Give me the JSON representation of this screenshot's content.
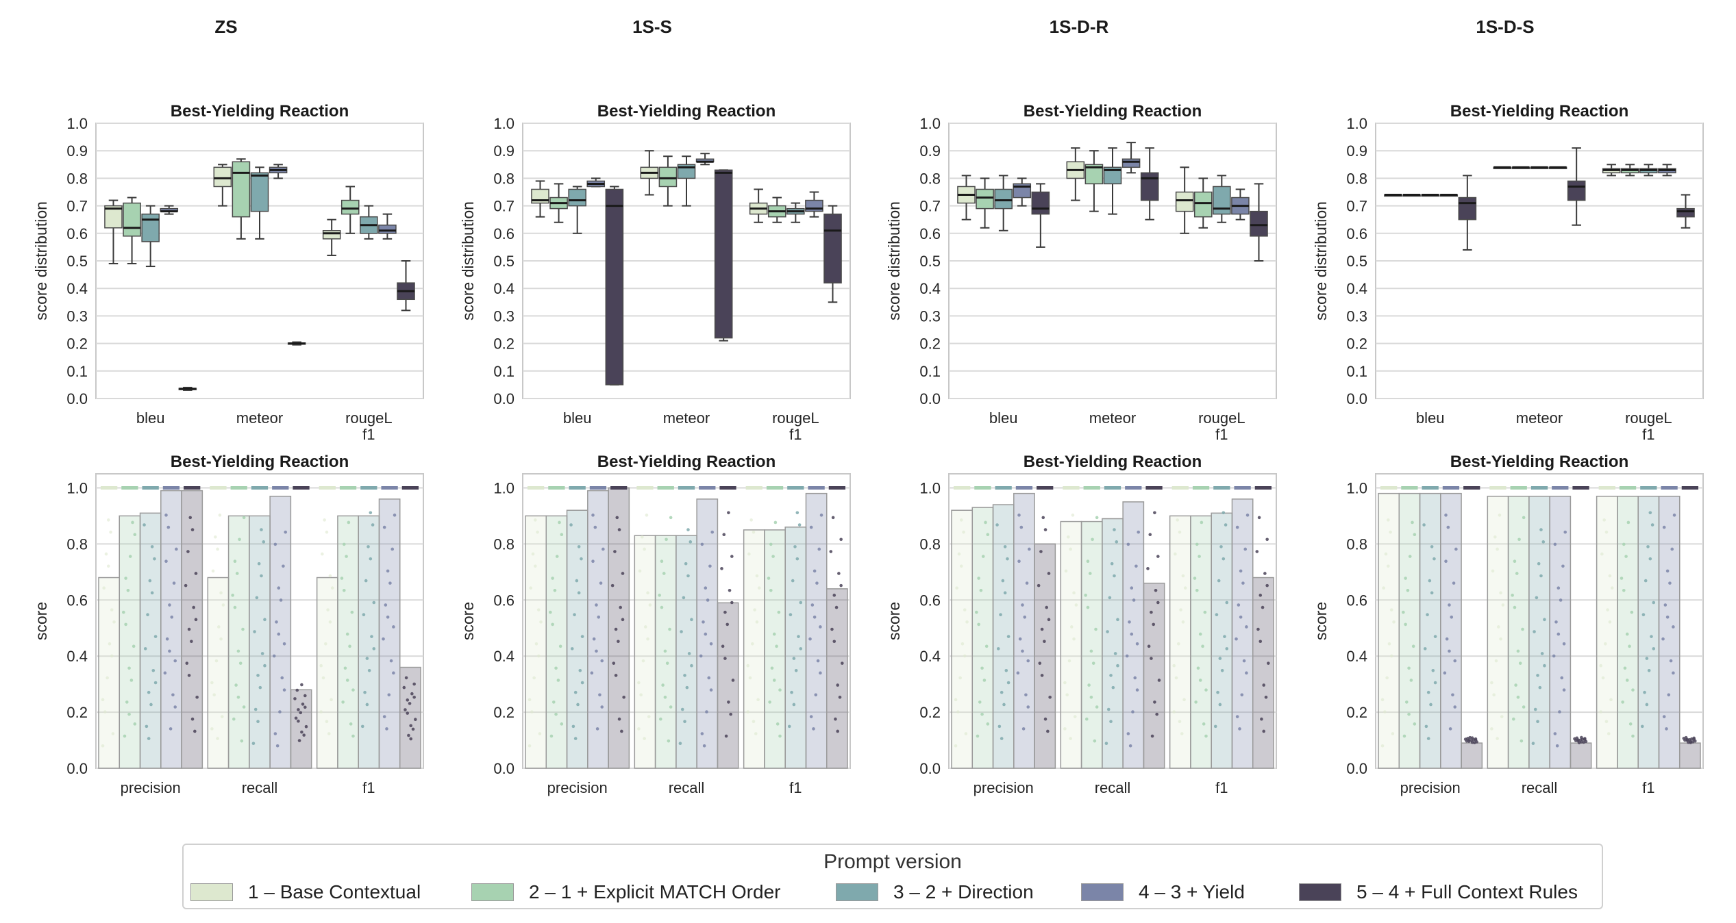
{
  "columns": [
    "ZS",
    "1S-S",
    "1S-D-R",
    "1S-D-S"
  ],
  "legend": {
    "title": "Prompt version",
    "items": [
      {
        "label": "1 – Base Contextual",
        "color": "#dde8cf"
      },
      {
        "label": "2 – 1 + Explicit MATCH Order",
        "color": "#a7d2b1"
      },
      {
        "label": "3 – 2 + Direction",
        "color": "#7fa9ad"
      },
      {
        "label": "4 – 3 + Yield",
        "color": "#7b85a8"
      },
      {
        "label": "5 – 4 + Full Context Rules",
        "color": "#4a4358"
      }
    ]
  },
  "chart_data": [
    {
      "type": "box",
      "column": "ZS",
      "title": "Best-Yielding Reaction",
      "ylabel": "score distribution",
      "ylim": [
        0,
        1
      ],
      "yticks": [
        "0.0",
        "0.1",
        "0.2",
        "0.3",
        "0.4",
        "0.5",
        "0.6",
        "0.7",
        "0.8",
        "0.9",
        "1.0"
      ],
      "categories": [
        "bleu",
        "meteor",
        "rougeL\nf1"
      ],
      "series": [
        {
          "name": "1",
          "boxes": [
            [
              0.49,
              0.62,
              0.69,
              0.7,
              0.72
            ],
            [
              0.7,
              0.77,
              0.8,
              0.84,
              0.85
            ],
            [
              0.52,
              0.58,
              0.6,
              0.61,
              0.65
            ]
          ]
        },
        {
          "name": "2",
          "boxes": [
            [
              0.49,
              0.59,
              0.62,
              0.71,
              0.73
            ],
            [
              0.58,
              0.66,
              0.82,
              0.86,
              0.87
            ],
            [
              0.6,
              0.67,
              0.69,
              0.72,
              0.77
            ]
          ]
        },
        {
          "name": "3",
          "boxes": [
            [
              0.48,
              0.57,
              0.65,
              0.67,
              0.7
            ],
            [
              0.58,
              0.68,
              0.81,
              0.82,
              0.84
            ],
            [
              0.58,
              0.6,
              0.63,
              0.66,
              0.7
            ]
          ]
        },
        {
          "name": "4",
          "boxes": [
            [
              0.67,
              0.68,
              0.68,
              0.69,
              0.7
            ],
            [
              0.8,
              0.82,
              0.83,
              0.84,
              0.85
            ],
            [
              0.58,
              0.6,
              0.61,
              0.63,
              0.67
            ]
          ]
        },
        {
          "name": "5",
          "boxes": [
            [
              0.03,
              0.034,
              0.035,
              0.037,
              0.04
            ],
            [
              0.195,
              0.198,
              0.2,
              0.202,
              0.205
            ],
            [
              0.32,
              0.36,
              0.39,
              0.42,
              0.5
            ]
          ]
        }
      ]
    },
    {
      "type": "box",
      "column": "1S-S",
      "title": "Best-Yielding Reaction",
      "ylabel": "score distribution",
      "ylim": [
        0,
        1
      ],
      "yticks": [
        "0.0",
        "0.1",
        "0.2",
        "0.3",
        "0.4",
        "0.5",
        "0.6",
        "0.7",
        "0.8",
        "0.9",
        "1.0"
      ],
      "categories": [
        "bleu",
        "meteor",
        "rougeL\nf1"
      ],
      "series": [
        {
          "name": "1",
          "boxes": [
            [
              0.66,
              0.71,
              0.72,
              0.76,
              0.79
            ],
            [
              0.74,
              0.8,
              0.82,
              0.84,
              0.9
            ],
            [
              0.64,
              0.67,
              0.69,
              0.71,
              0.76
            ]
          ]
        },
        {
          "name": "2",
          "boxes": [
            [
              0.64,
              0.69,
              0.71,
              0.73,
              0.78
            ],
            [
              0.7,
              0.77,
              0.8,
              0.84,
              0.88
            ],
            [
              0.64,
              0.66,
              0.68,
              0.7,
              0.73
            ]
          ]
        },
        {
          "name": "3",
          "boxes": [
            [
              0.6,
              0.7,
              0.72,
              0.76,
              0.77
            ],
            [
              0.7,
              0.8,
              0.84,
              0.85,
              0.88
            ],
            [
              0.64,
              0.67,
              0.68,
              0.69,
              0.71
            ]
          ]
        },
        {
          "name": "4",
          "boxes": [
            [
              0.77,
              0.77,
              0.78,
              0.79,
              0.8
            ],
            [
              0.85,
              0.86,
              0.86,
              0.87,
              0.89
            ],
            [
              0.66,
              0.68,
              0.69,
              0.72,
              0.75
            ]
          ]
        },
        {
          "name": "5",
          "boxes": [
            [
              0.05,
              0.05,
              0.7,
              0.76,
              0.77
            ],
            [
              0.21,
              0.22,
              0.82,
              0.83,
              0.83
            ],
            [
              0.35,
              0.42,
              0.61,
              0.67,
              0.7
            ]
          ]
        }
      ]
    },
    {
      "type": "box",
      "column": "1S-D-R",
      "title": "Best-Yielding Reaction",
      "ylabel": "score distribution",
      "ylim": [
        0,
        1
      ],
      "yticks": [
        "0.0",
        "0.1",
        "0.2",
        "0.3",
        "0.4",
        "0.5",
        "0.6",
        "0.7",
        "0.8",
        "0.9",
        "1.0"
      ],
      "categories": [
        "bleu",
        "meteor",
        "rougeL\nf1"
      ],
      "series": [
        {
          "name": "1",
          "boxes": [
            [
              0.65,
              0.71,
              0.74,
              0.77,
              0.81
            ],
            [
              0.72,
              0.8,
              0.83,
              0.86,
              0.91
            ],
            [
              0.6,
              0.68,
              0.72,
              0.75,
              0.84
            ]
          ]
        },
        {
          "name": "2",
          "boxes": [
            [
              0.62,
              0.69,
              0.73,
              0.76,
              0.8
            ],
            [
              0.68,
              0.78,
              0.84,
              0.85,
              0.9
            ],
            [
              0.62,
              0.66,
              0.71,
              0.75,
              0.8
            ]
          ]
        },
        {
          "name": "3",
          "boxes": [
            [
              0.61,
              0.69,
              0.72,
              0.76,
              0.81
            ],
            [
              0.67,
              0.78,
              0.83,
              0.84,
              0.91
            ],
            [
              0.64,
              0.67,
              0.69,
              0.77,
              0.81
            ]
          ]
        },
        {
          "name": "4",
          "boxes": [
            [
              0.7,
              0.73,
              0.77,
              0.78,
              0.8
            ],
            [
              0.82,
              0.84,
              0.86,
              0.87,
              0.93
            ],
            [
              0.65,
              0.67,
              0.7,
              0.73,
              0.76
            ]
          ]
        },
        {
          "name": "5",
          "boxes": [
            [
              0.55,
              0.67,
              0.69,
              0.75,
              0.78
            ],
            [
              0.65,
              0.72,
              0.8,
              0.82,
              0.91
            ],
            [
              0.5,
              0.59,
              0.63,
              0.68,
              0.78
            ]
          ]
        }
      ]
    },
    {
      "type": "box",
      "column": "1S-D-S",
      "title": "Best-Yielding Reaction",
      "ylabel": "score distribution",
      "ylim": [
        0,
        1
      ],
      "yticks": [
        "0.0",
        "0.1",
        "0.2",
        "0.3",
        "0.4",
        "0.5",
        "0.6",
        "0.7",
        "0.8",
        "0.9",
        "1.0"
      ],
      "categories": [
        "bleu",
        "meteor",
        "rougeL\nf1"
      ],
      "series": [
        {
          "name": "1",
          "boxes": [
            [
              0.74,
              0.74,
              0.74,
              0.74,
              0.74
            ],
            [
              0.84,
              0.84,
              0.84,
              0.84,
              0.84
            ],
            [
              0.81,
              0.82,
              0.83,
              0.835,
              0.85
            ]
          ]
        },
        {
          "name": "2",
          "boxes": [
            [
              0.74,
              0.74,
              0.74,
              0.74,
              0.74
            ],
            [
              0.84,
              0.84,
              0.84,
              0.84,
              0.84
            ],
            [
              0.81,
              0.82,
              0.83,
              0.835,
              0.85
            ]
          ]
        },
        {
          "name": "3",
          "boxes": [
            [
              0.74,
              0.74,
              0.74,
              0.74,
              0.74
            ],
            [
              0.84,
              0.84,
              0.84,
              0.84,
              0.84
            ],
            [
              0.81,
              0.82,
              0.83,
              0.835,
              0.85
            ]
          ]
        },
        {
          "name": "4",
          "boxes": [
            [
              0.74,
              0.74,
              0.74,
              0.74,
              0.74
            ],
            [
              0.84,
              0.84,
              0.84,
              0.84,
              0.84
            ],
            [
              0.81,
              0.82,
              0.83,
              0.835,
              0.85
            ]
          ]
        },
        {
          "name": "5",
          "boxes": [
            [
              0.54,
              0.65,
              0.71,
              0.73,
              0.81
            ],
            [
              0.63,
              0.72,
              0.77,
              0.79,
              0.91
            ],
            [
              0.62,
              0.66,
              0.68,
              0.69,
              0.74
            ]
          ]
        }
      ]
    },
    {
      "type": "bar",
      "column": "ZS",
      "title": "Best-Yielding Reaction",
      "ylabel": "score",
      "ylim": [
        0,
        1.05
      ],
      "yticks": [
        "0.0",
        "0.2",
        "0.4",
        "0.6",
        "0.8",
        "1.0"
      ],
      "categories": [
        "precision",
        "recall",
        "f1"
      ],
      "series": [
        {
          "name": "1",
          "values": [
            0.68,
            0.68,
            0.68
          ]
        },
        {
          "name": "2",
          "values": [
            0.9,
            0.9,
            0.9
          ]
        },
        {
          "name": "3",
          "values": [
            0.91,
            0.9,
            0.9
          ]
        },
        {
          "name": "4",
          "values": [
            0.99,
            0.97,
            0.96
          ]
        },
        {
          "name": "5",
          "values": [
            0.99,
            0.28,
            0.36
          ]
        }
      ]
    },
    {
      "type": "bar",
      "column": "1S-S",
      "title": "Best-Yielding Reaction",
      "ylabel": "score",
      "ylim": [
        0,
        1.05
      ],
      "yticks": [
        "0.0",
        "0.2",
        "0.4",
        "0.6",
        "0.8",
        "1.0"
      ],
      "categories": [
        "precision",
        "recall",
        "f1"
      ],
      "series": [
        {
          "name": "1",
          "values": [
            0.9,
            0.83,
            0.85
          ]
        },
        {
          "name": "2",
          "values": [
            0.9,
            0.83,
            0.85
          ]
        },
        {
          "name": "3",
          "values": [
            0.92,
            0.83,
            0.86
          ]
        },
        {
          "name": "4",
          "values": [
            0.99,
            0.96,
            0.98
          ]
        },
        {
          "name": "5",
          "values": [
            1.0,
            0.59,
            0.64
          ]
        }
      ]
    },
    {
      "type": "bar",
      "column": "1S-D-R",
      "title": "Best-Yielding Reaction",
      "ylabel": "score",
      "ylim": [
        0,
        1.05
      ],
      "yticks": [
        "0.0",
        "0.2",
        "0.4",
        "0.6",
        "0.8",
        "1.0"
      ],
      "categories": [
        "precision",
        "recall",
        "f1"
      ],
      "series": [
        {
          "name": "1",
          "values": [
            0.92,
            0.88,
            0.9
          ]
        },
        {
          "name": "2",
          "values": [
            0.93,
            0.88,
            0.9
          ]
        },
        {
          "name": "3",
          "values": [
            0.94,
            0.89,
            0.91
          ]
        },
        {
          "name": "4",
          "values": [
            0.98,
            0.95,
            0.96
          ]
        },
        {
          "name": "5",
          "values": [
            0.8,
            0.66,
            0.68
          ]
        }
      ]
    },
    {
      "type": "bar",
      "column": "1S-D-S",
      "title": "Best-Yielding Reaction",
      "ylabel": "score",
      "ylim": [
        0,
        1.05
      ],
      "yticks": [
        "0.0",
        "0.2",
        "0.4",
        "0.6",
        "0.8",
        "1.0"
      ],
      "categories": [
        "precision",
        "recall",
        "f1"
      ],
      "series": [
        {
          "name": "1",
          "values": [
            0.98,
            0.97,
            0.97
          ]
        },
        {
          "name": "2",
          "values": [
            0.98,
            0.97,
            0.97
          ]
        },
        {
          "name": "3",
          "values": [
            0.98,
            0.97,
            0.97
          ]
        },
        {
          "name": "4",
          "values": [
            0.98,
            0.97,
            0.97
          ]
        },
        {
          "name": "5",
          "values": [
            0.09,
            0.09,
            0.09
          ]
        }
      ]
    }
  ]
}
